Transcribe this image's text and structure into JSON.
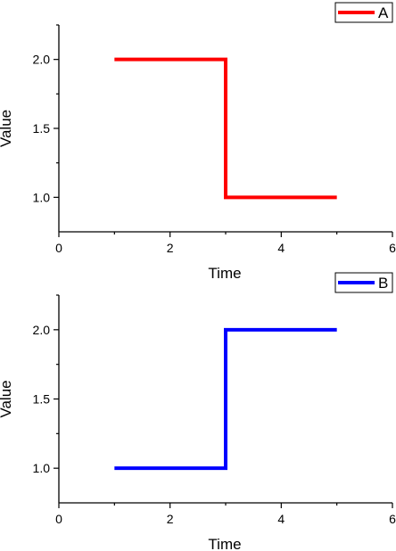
{
  "chart_data": [
    {
      "type": "line",
      "step": true,
      "xlabel": "Time",
      "ylabel": "Value",
      "xlim": [
        0,
        6
      ],
      "ylim": [
        0.75,
        2.25
      ],
      "xticks": [
        0,
        2,
        4,
        6
      ],
      "yticks": [
        1.0,
        1.5,
        2.0
      ],
      "grid": false,
      "legend": "top-right",
      "series": [
        {
          "name": "A",
          "color": "#ff0000",
          "x": [
            1,
            3,
            3,
            5
          ],
          "y": [
            2.0,
            2.0,
            1.0,
            1.0
          ]
        }
      ]
    },
    {
      "type": "line",
      "step": true,
      "xlabel": "Time",
      "ylabel": "Value",
      "xlim": [
        0,
        6
      ],
      "ylim": [
        0.75,
        2.25
      ],
      "xticks": [
        0,
        2,
        4,
        6
      ],
      "yticks": [
        1.0,
        1.5,
        2.0
      ],
      "grid": false,
      "legend": "top-right",
      "series": [
        {
          "name": "B",
          "color": "#0000ff",
          "x": [
            1,
            3,
            3,
            5
          ],
          "y": [
            1.0,
            1.0,
            2.0,
            2.0
          ]
        }
      ]
    }
  ]
}
